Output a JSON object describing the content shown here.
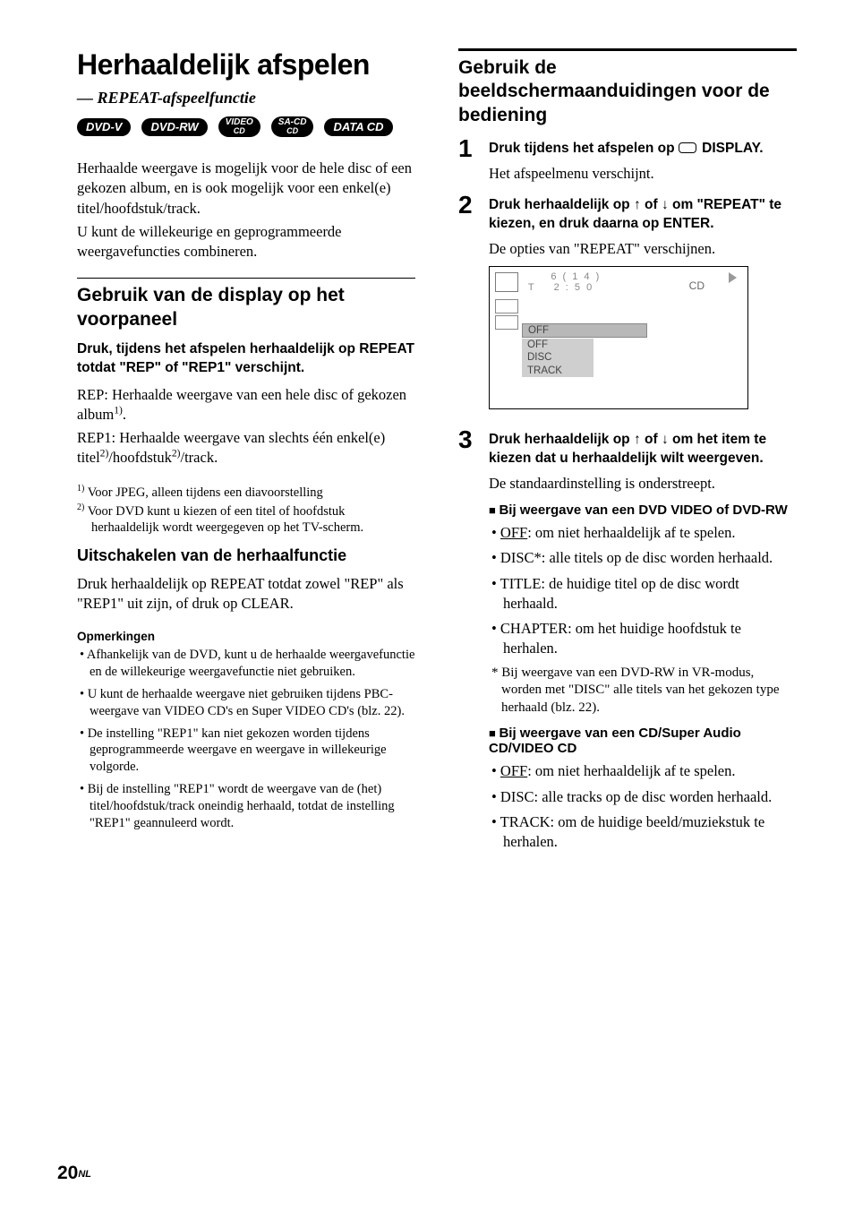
{
  "left": {
    "main_title": "Herhaaldelijk afspelen",
    "subtitle": "— REPEAT-afspeelfunctie",
    "badges": [
      "DVD-V",
      "DVD-RW",
      "VIDEO|CD",
      "SA-CD|CD",
      "DATA CD"
    ],
    "intro_p1": "Herhaalde weergave is mogelijk voor de hele disc of een gekozen album, en is ook mogelijk voor een enkel(e) titel/hoofdstuk/track.",
    "intro_p2": "U kunt de willekeurige en geprogrammeerde weergavefuncties combineren.",
    "h2_a": "Gebruik van de display op het voorpaneel",
    "instr_a": "Druk, tijdens het afspelen herhaaldelijk op REPEAT totdat \"REP\" of \"REP1\" verschijnt.",
    "rep_line_pre": "REP: Herhaalde weergave van een hele disc of gekozen album",
    "rep_line_sup": "1)",
    "rep_line_post": ".",
    "rep1_a": "REP1: Herhaalde weergave van slechts één enkel(e) titel",
    "rep1_b": "/hoofdstuk",
    "rep1_c": "/track.",
    "rep1_sup": "2)",
    "fn1_sup": "1)",
    "fn1": " Voor JPEG, alleen tijdens een diavoorstelling",
    "fn2_sup": "2)",
    "fn2": " Voor DVD kunt u kiezen of een titel of hoofdstuk herhaaldelijk wordt weergegeven op het TV-scherm.",
    "h3_a": "Uitschakelen van de herhaalfunctie",
    "p_off": "Druk herhaaldelijk op REPEAT totdat zowel \"REP\" als \"REP1\" uit zijn, of druk op CLEAR.",
    "notes_head": "Opmerkingen",
    "notes": [
      "Afhankelijk van de DVD, kunt u de herhaalde weergavefunctie en de willekeurige weergavefunctie niet gebruiken.",
      "U kunt de herhaalde weergave niet gebruiken tijdens PBC-weergave van VIDEO CD's en Super VIDEO CD's (blz. 22).",
      "De instelling \"REP1\" kan niet gekozen worden tijdens geprogrammeerde weergave en weergave in willekeurige volgorde.",
      "Bij de instelling \"REP1\" wordt de weergave van de (het) titel/hoofdstuk/track oneindig herhaald, totdat de instelling \"REP1\" geannuleerd wordt."
    ]
  },
  "right": {
    "h2": "Gebruik de beeldschermaanduidingen voor de bediening",
    "steps": [
      {
        "num": "1",
        "instr_pre": "Druk tijdens het afspelen op ",
        "instr_post": " DISPLAY.",
        "after": "Het afspeelmenu verschijnt."
      },
      {
        "num": "2",
        "instr": "Druk herhaaldelijk op ↑ of ↓ om \"REPEAT\" te kiezen, en druk daarna op ENTER.",
        "after": "De opties van \"REPEAT\" verschijnen."
      },
      {
        "num": "3",
        "instr": "Druk herhaaldelijk op ↑ of ↓ om het item te kiezen dat u herhaaldelijk wilt weergeven.",
        "after": "De standaardinstelling is onderstreept."
      }
    ],
    "menu": {
      "track_text": "      6 ( 1 4 )\n T    2 : 5 0",
      "cd": "CD",
      "selected": "OFF",
      "options": [
        "OFF",
        "DISC",
        "TRACK"
      ]
    },
    "sub1_title": "Bij weergave van een DVD VIDEO of DVD-RW",
    "sub1_items": [
      {
        "u": "OFF",
        "rest": ": om niet herhaaldelijk af te spelen."
      },
      {
        "plain": "DISC*: alle titels op de disc worden herhaald."
      },
      {
        "plain": "TITLE: de huidige titel op de disc wordt herhaald."
      },
      {
        "plain": "CHAPTER: om het huidige hoofdstuk te herhalen."
      }
    ],
    "star_note": "* Bij weergave van een DVD-RW in VR-modus, worden met \"DISC\" alle titels van het gekozen type herhaald (blz. 22).",
    "sub2_title": "Bij weergave van een CD/Super Audio CD/VIDEO CD",
    "sub2_items": [
      {
        "u": "OFF",
        "rest": ": om niet herhaaldelijk af te spelen."
      },
      {
        "plain": "DISC: alle tracks op de disc worden herhaald."
      },
      {
        "plain": "TRACK: om de huidige beeld/muziekstuk te herhalen."
      }
    ]
  },
  "footer": {
    "page": "20",
    "suffix": "NL"
  }
}
